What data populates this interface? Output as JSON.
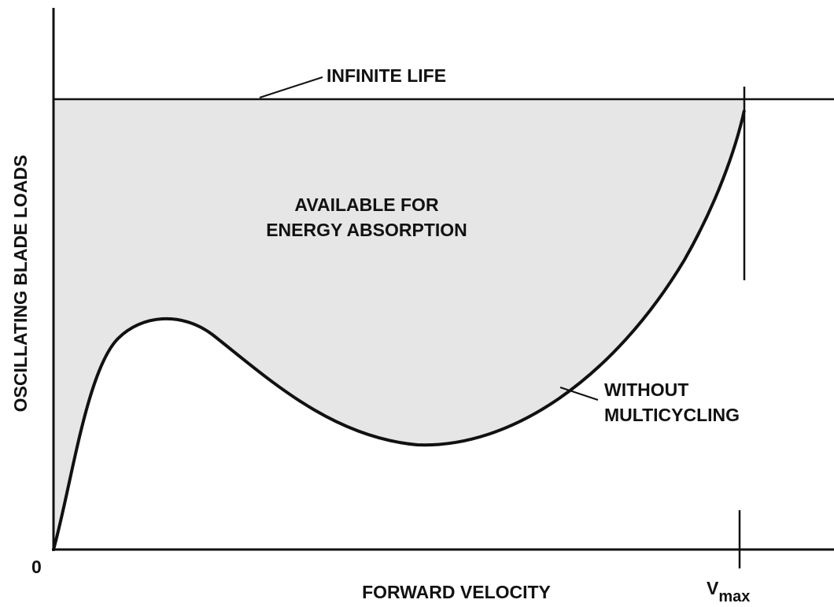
{
  "title_line": "INFINITE LIFE",
  "region_label": [
    "AVAILABLE FOR",
    "ENERGY ABSORPTION"
  ],
  "curve_label": [
    "WITHOUT",
    "MULTICYCLING"
  ],
  "y_axis_label": "OSCILLATING BLADE LOADS",
  "x_axis_label": "FORWARD VELOCITY",
  "origin_label": "0",
  "vmax_label": {
    "main": "V",
    "sub": "max"
  }
}
